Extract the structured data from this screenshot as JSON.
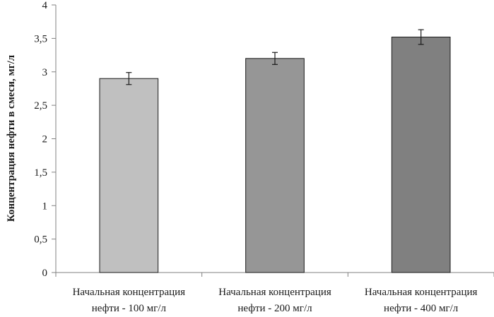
{
  "chart_data": {
    "type": "bar",
    "title": "",
    "xlabel": "",
    "ylabel": "Концентрация нефти в смеси, мг/л",
    "ylim": [
      0,
      4
    ],
    "yticks": [
      "0",
      "0,5",
      "1",
      "1,5",
      "2",
      "2,5",
      "3",
      "3,5",
      "4"
    ],
    "ytick_values": [
      0,
      0.5,
      1,
      1.5,
      2,
      2.5,
      3,
      3.5,
      4
    ],
    "categories": [
      [
        "Начальная концентрация",
        "нефти - 100 мг/л"
      ],
      [
        "Начальная концентрация",
        "нефти - 200 мг/л"
      ],
      [
        "Начальная концентрация",
        "нефти - 400 мг/л"
      ]
    ],
    "values": [
      2.9,
      3.2,
      3.52
    ],
    "errors": [
      0.09,
      0.09,
      0.11
    ],
    "bar_colors": [
      "#c0c0c0",
      "#969696",
      "#808080"
    ],
    "grid": false,
    "legend": "none"
  }
}
